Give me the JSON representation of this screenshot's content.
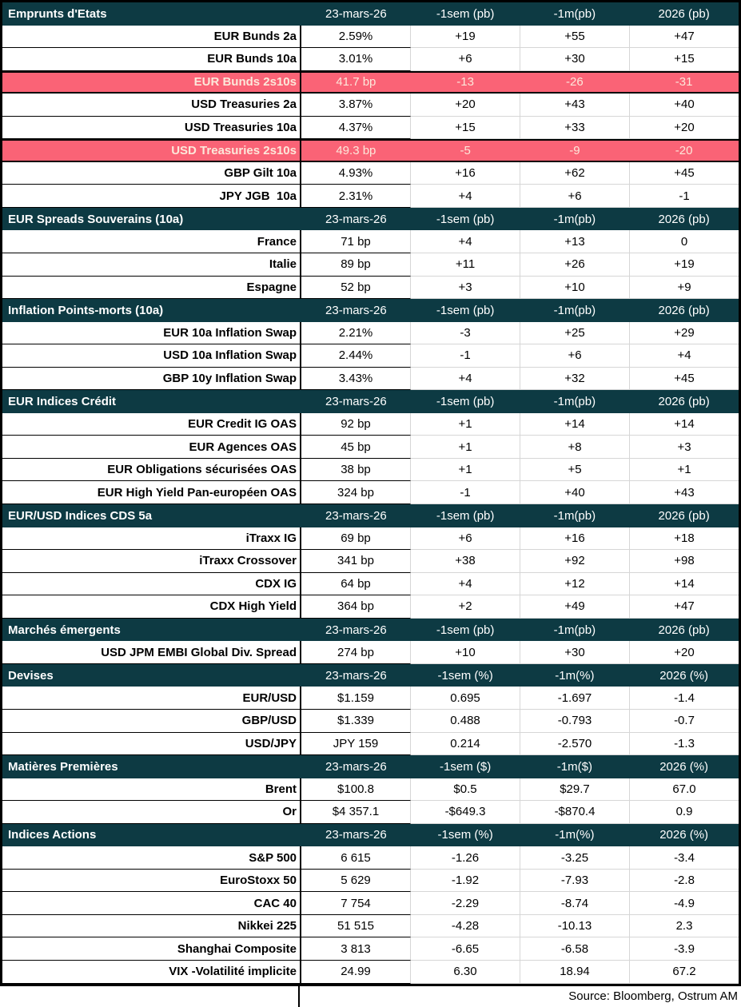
{
  "colors": {
    "header_bg": "#0d3a43",
    "header_text": "#ffffff",
    "highlight_bg": "#fa6376",
    "highlight_text": "#fce8da",
    "grid_line": "#d6d6d6",
    "border": "#000000"
  },
  "table": {
    "footer": "Source: Bloomberg, Ostrum AM",
    "sections": [
      {
        "title": "Emprunts d'Etats",
        "col_headers": [
          "23-mars-26",
          "-1sem (pb)",
          "-1m(pb)",
          "2026 (pb)"
        ],
        "rows": [
          {
            "label": "EUR Bunds 2a",
            "values": [
              "2.59%",
              "+19",
              "+55",
              "+47"
            ],
            "highlight": false
          },
          {
            "label": "EUR Bunds 10a",
            "values": [
              "3.01%",
              "+6",
              "+30",
              "+15"
            ],
            "highlight": false
          },
          {
            "label": "EUR Bunds 2s10s",
            "values": [
              "41.7 bp",
              "-13",
              "-26",
              "-31"
            ],
            "highlight": true
          },
          {
            "label": "USD Treasuries 2a",
            "values": [
              "3.87%",
              "+20",
              "+43",
              "+40"
            ],
            "highlight": false
          },
          {
            "label": "USD Treasuries 10a",
            "values": [
              "4.37%",
              "+15",
              "+33",
              "+20"
            ],
            "highlight": false
          },
          {
            "label": "USD Treasuries 2s10s",
            "values": [
              "49.3 bp",
              "-5",
              "-9",
              "-20"
            ],
            "highlight": true
          },
          {
            "label": "GBP Gilt 10a",
            "values": [
              "4.93%",
              "+16",
              "+62",
              "+45"
            ],
            "highlight": false
          },
          {
            "label": "JPY JGB  10a",
            "values": [
              "2.31%",
              "+4",
              "+6",
              "-1"
            ],
            "highlight": false
          }
        ]
      },
      {
        "title": "EUR Spreads Souverains (10a)",
        "col_headers": [
          "23-mars-26",
          "-1sem (pb)",
          "-1m(pb)",
          "2026 (pb)"
        ],
        "rows": [
          {
            "label": "France",
            "values": [
              "71 bp",
              "+4",
              "+13",
              "0"
            ],
            "highlight": false
          },
          {
            "label": "Italie",
            "values": [
              "89 bp",
              "+11",
              "+26",
              "+19"
            ],
            "highlight": false
          },
          {
            "label": "Espagne",
            "values": [
              "52 bp",
              "+3",
              "+10",
              "+9"
            ],
            "highlight": false
          }
        ]
      },
      {
        "title": "Inflation Points-morts (10a)",
        "col_headers": [
          "23-mars-26",
          "-1sem (pb)",
          "-1m(pb)",
          "2026 (pb)"
        ],
        "rows": [
          {
            "label": "EUR 10a Inflation Swap",
            "values": [
              "2.21%",
              "-3",
              "+25",
              "+29"
            ],
            "highlight": false
          },
          {
            "label": "USD 10a Inflation Swap",
            "values": [
              "2.44%",
              "-1",
              "+6",
              "+4"
            ],
            "highlight": false
          },
          {
            "label": "GBP 10y Inflation Swap",
            "values": [
              "3.43%",
              "+4",
              "+32",
              "+45"
            ],
            "highlight": false
          }
        ]
      },
      {
        "title": "EUR Indices Crédit",
        "col_headers": [
          "23-mars-26",
          "-1sem (pb)",
          "-1m(pb)",
          "2026 (pb)"
        ],
        "rows": [
          {
            "label": "EUR Credit IG OAS",
            "values": [
              "92 bp",
              "+1",
              "+14",
              "+14"
            ],
            "highlight": false
          },
          {
            "label": "EUR Agences OAS",
            "values": [
              "45 bp",
              "+1",
              "+8",
              "+3"
            ],
            "highlight": false
          },
          {
            "label": "EUR Obligations sécurisées OAS",
            "values": [
              "38 bp",
              "+1",
              "+5",
              "+1"
            ],
            "highlight": false
          },
          {
            "label": "EUR High Yield Pan-européen OAS",
            "values": [
              "324 bp",
              "-1",
              "+40",
              "+43"
            ],
            "highlight": false
          }
        ]
      },
      {
        "title": "EUR/USD Indices CDS 5a",
        "col_headers": [
          "23-mars-26",
          "-1sem (pb)",
          "-1m(pb)",
          "2026 (pb)"
        ],
        "rows": [
          {
            "label": "iTraxx IG",
            "values": [
              "69 bp",
              "+6",
              "+16",
              "+18"
            ],
            "highlight": false
          },
          {
            "label": "iTraxx Crossover",
            "values": [
              "341 bp",
              "+38",
              "+92",
              "+98"
            ],
            "highlight": false
          },
          {
            "label": "CDX IG",
            "values": [
              "64 bp",
              "+4",
              "+12",
              "+14"
            ],
            "highlight": false
          },
          {
            "label": "CDX High Yield",
            "values": [
              "364 bp",
              "+2",
              "+49",
              "+47"
            ],
            "highlight": false
          }
        ]
      },
      {
        "title": "Marchés émergents",
        "col_headers": [
          "23-mars-26",
          "-1sem (pb)",
          "-1m(pb)",
          "2026 (pb)"
        ],
        "rows": [
          {
            "label": "USD JPM EMBI Global Div. Spread",
            "values": [
              "274 bp",
              "+10",
              "+30",
              "+20"
            ],
            "highlight": false
          }
        ]
      },
      {
        "title": "Devises",
        "col_headers": [
          "23-mars-26",
          "-1sem (%)",
          "-1m(%)",
          "2026 (%)"
        ],
        "rows": [
          {
            "label": "EUR/USD",
            "values": [
              "$1.159",
              "0.695",
              "-1.697",
              "-1.4"
            ],
            "highlight": false
          },
          {
            "label": "GBP/USD",
            "values": [
              "$1.339",
              "0.488",
              "-0.793",
              "-0.7"
            ],
            "highlight": false
          },
          {
            "label": "USD/JPY",
            "values": [
              "JPY 159",
              "0.214",
              "-2.570",
              "-1.3"
            ],
            "highlight": false
          }
        ]
      },
      {
        "title": "Matières Premières",
        "col_headers": [
          "23-mars-26",
          "-1sem ($)",
          "-1m($)",
          "2026 (%)"
        ],
        "rows": [
          {
            "label": "Brent",
            "values": [
              "$100.8",
              "$0.5",
              "$29.7",
              "67.0"
            ],
            "highlight": false
          },
          {
            "label": "Or",
            "values": [
              "$4 357.1",
              "-$649.3",
              "-$870.4",
              "0.9"
            ],
            "highlight": false
          }
        ]
      },
      {
        "title": "Indices Actions",
        "col_headers": [
          "23-mars-26",
          "-1sem (%)",
          "-1m(%)",
          "2026 (%)"
        ],
        "rows": [
          {
            "label": "S&P 500",
            "values": [
              "6 615",
              "-1.26",
              "-3.25",
              "-3.4"
            ],
            "highlight": false
          },
          {
            "label": "EuroStoxx 50",
            "values": [
              "5 629",
              "-1.92",
              "-7.93",
              "-2.8"
            ],
            "highlight": false
          },
          {
            "label": "CAC 40",
            "values": [
              "7 754",
              "-2.29",
              "-8.74",
              "-4.9"
            ],
            "highlight": false
          },
          {
            "label": "Nikkei 225",
            "values": [
              "51 515",
              "-4.28",
              "-10.13",
              "2.3"
            ],
            "highlight": false
          },
          {
            "label": "Shanghai Composite",
            "values": [
              "3 813",
              "-6.65",
              "-6.58",
              "-3.9"
            ],
            "highlight": false
          },
          {
            "label": "VIX -Volatilité implicite",
            "values": [
              "24.99",
              "6.30",
              "18.94",
              "67.2"
            ],
            "highlight": false
          }
        ]
      }
    ]
  }
}
